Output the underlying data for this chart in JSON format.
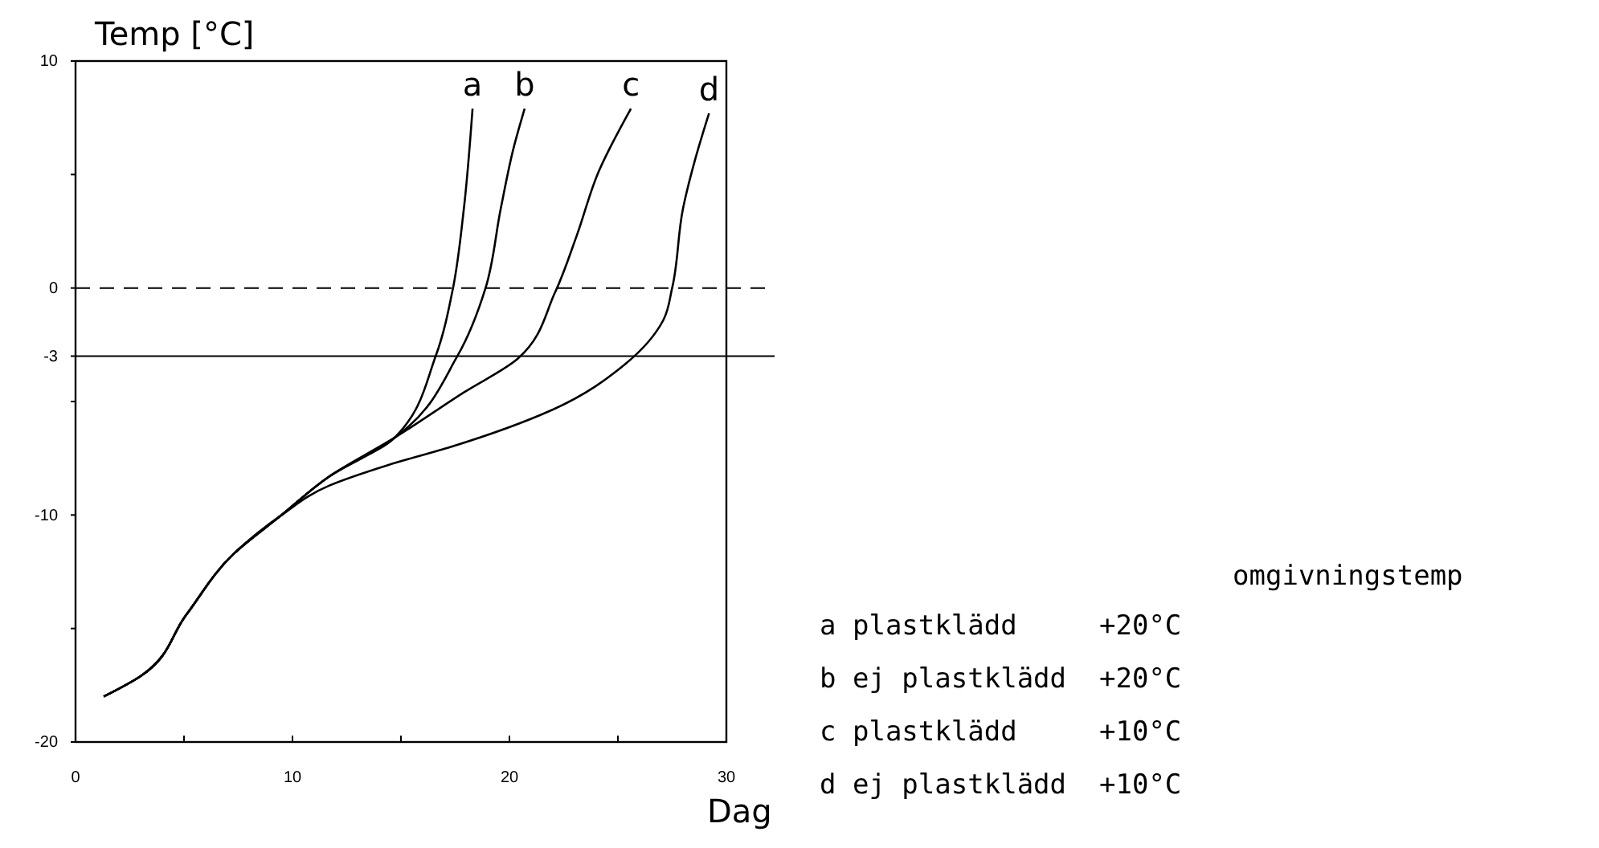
{
  "chart_data": {
    "type": "line",
    "xlabel": "Dag",
    "ylabel": "Temp [°C]",
    "xlim": [
      0,
      30
    ],
    "xticks": [
      0,
      {
        "value": 5,
        "label": null
      },
      10,
      {
        "value": 15,
        "label": null
      },
      20,
      {
        "value": 25,
        "label": null
      },
      30
    ],
    "ylim": [
      -20,
      10
    ],
    "yticks": [
      -20,
      {
        "value": -15,
        "label": null
      },
      -10,
      {
        "value": -5,
        "label": null
      },
      -3,
      0,
      {
        "value": 5,
        "label": null
      },
      10
    ],
    "grid": false,
    "legend": false,
    "line_style": "solid",
    "marker": "none",
    "ref_lines": [
      {
        "axis": "y",
        "value": 0,
        "line_style": "dashed",
        "color": "#000000"
      },
      {
        "axis": "y",
        "value": -3,
        "line_style": "solid",
        "color": "#000000"
      }
    ],
    "series": [
      {
        "name": "a",
        "color": "#000000",
        "x": [
          1.3,
          3.0,
          5.1,
          7.3,
          9.5,
          11.7,
          14.7,
          16.6,
          17.4,
          17.9,
          18.3
        ],
        "values": [
          -18.0,
          -17.1,
          -14.4,
          -11.7,
          -10.0,
          -8.3,
          -6.6,
          -3.0,
          0,
          3.5,
          7.9
        ]
      },
      {
        "name": "b",
        "color": "#000000",
        "x": [
          1.3,
          3.0,
          5.1,
          7.3,
          9.5,
          11.7,
          14.7,
          17.6,
          18.9,
          19.6,
          20.2,
          20.7
        ],
        "values": [
          -18.0,
          -17.1,
          -14.4,
          -11.7,
          -10.0,
          -8.3,
          -6.6,
          -3.0,
          0,
          3.5,
          6.2,
          7.9
        ]
      },
      {
        "name": "c",
        "color": "#000000",
        "x": [
          1.3,
          3.0,
          5.1,
          7.3,
          9.5,
          11.7,
          14.7,
          17.9,
          20.4,
          22.1,
          23.1,
          24.1,
          25.6
        ],
        "values": [
          -18.0,
          -17.1,
          -14.4,
          -11.7,
          -10.0,
          -8.3,
          -6.6,
          -4.6,
          -3.1,
          -0.2,
          2.3,
          5.1,
          7.9
        ]
      },
      {
        "name": "d",
        "color": "#000000",
        "x": [
          1.3,
          3.0,
          5.1,
          7.3,
          9.5,
          11.7,
          14.4,
          17.3,
          21.9,
          25.4,
          27.1,
          27.5,
          28.0,
          28.6,
          29.2
        ],
        "values": [
          -18.0,
          -17.1,
          -14.4,
          -11.7,
          -10.0,
          -8.7,
          -7.8,
          -7.0,
          -5.4,
          -3.3,
          -1.4,
          0,
          3.5,
          5.8,
          7.7
        ]
      }
    ],
    "annotations": [
      "omgivningstemp",
      "a plastklädd     +20°C",
      "b ej plastklädd  +20°C",
      "c plastklädd     +10°C",
      "d ej plastklädd  +10°C"
    ]
  }
}
